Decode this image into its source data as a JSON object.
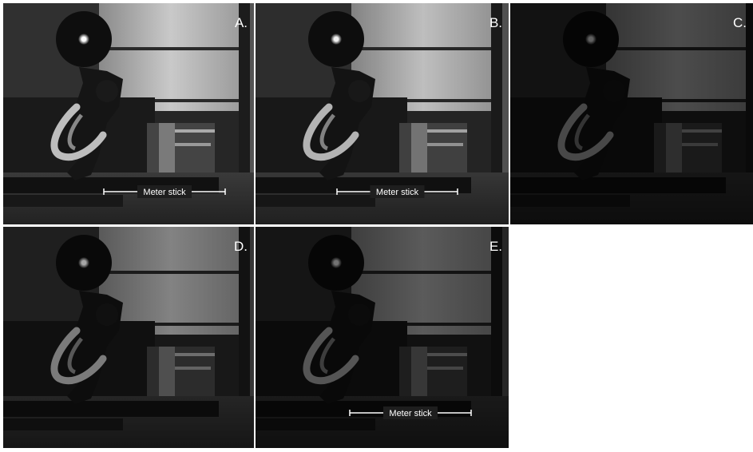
{
  "panels": [
    {
      "label": "A.",
      "annotation": "Meter stick"
    },
    {
      "label": "B.",
      "annotation": "Meter stick"
    },
    {
      "label": "C."
    },
    {
      "label": "D."
    },
    {
      "label": "E.",
      "annotation": "Meter stick"
    }
  ]
}
